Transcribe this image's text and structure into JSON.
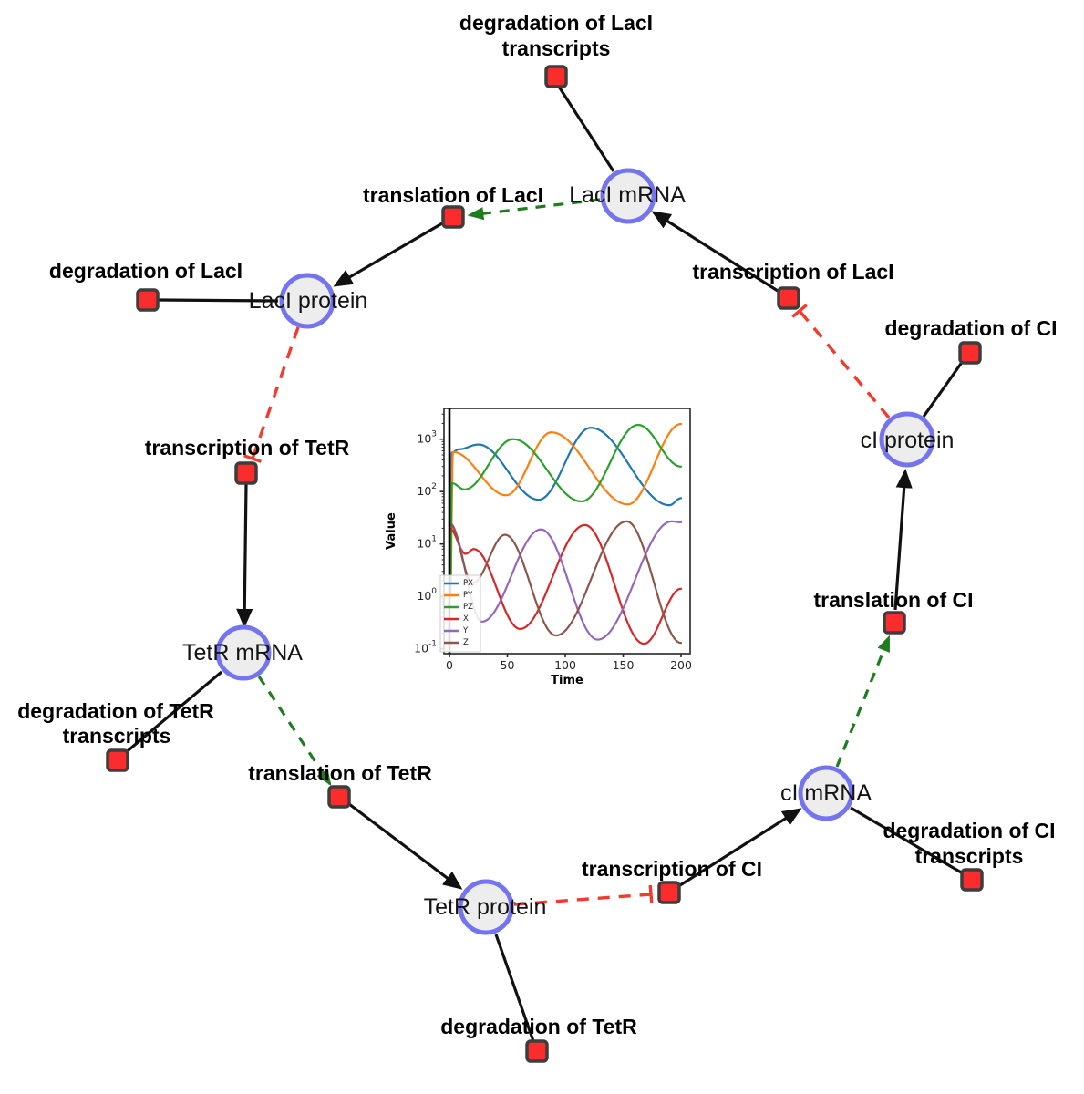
{
  "figure": {
    "background": "#ffffff"
  },
  "network": {
    "style": {
      "species_fill": "#ededed",
      "species_border": "#7473f0",
      "reaction_fill": "#fb2c2c",
      "reaction_border": "#3d3d3d",
      "production_color": "#111111",
      "modifier_color": "#1e7d1e",
      "inhibition_color": "#f23b2e"
    },
    "species": {
      "laci_mrna": {
        "label": "LacI mRNA"
      },
      "laci_protein": {
        "label": "LacI protein"
      },
      "tetr_mrna": {
        "label": "TetR mRNA"
      },
      "tetr_protein": {
        "label": "TetR protein"
      },
      "ci_mrna": {
        "label": "cI mRNA"
      },
      "ci_protein": {
        "label": "cI protein"
      }
    },
    "reactions": {
      "deg_laci_tx": {
        "line1": "degradation of LacI",
        "line2": "transcripts"
      },
      "transl_laci": {
        "line1": "translation of LacI"
      },
      "deg_laci": {
        "line1": "degradation of LacI"
      },
      "transc_tetr": {
        "line1": "transcription of TetR"
      },
      "deg_tetr_tx": {
        "line1": "degradation of TetR",
        "line2": "transcripts"
      },
      "transl_tetr": {
        "line1": "translation of TetR"
      },
      "deg_tetr": {
        "line1": "degradation of TetR"
      },
      "transc_ci": {
        "line1": "transcription of CI"
      },
      "deg_ci_tx": {
        "line1": "degradation of CI",
        "line2": "transcripts"
      },
      "transl_ci": {
        "line1": "translation of CI"
      },
      "deg_ci": {
        "line1": "degradation of CI"
      },
      "transc_laci": {
        "line1": "transcription of LacI"
      }
    },
    "edge_types": {
      "production": "solid black arrow",
      "consumption": "solid black line",
      "modifier": "green dashed arrow",
      "inhibition": "red dashed line with T-bar"
    }
  },
  "chart_data": {
    "type": "line",
    "title": "",
    "xlabel": "Time",
    "ylabel": "Value",
    "yscale": "log",
    "x_ticks": [
      0,
      50,
      100,
      150,
      200
    ],
    "y_tick_exponents": [
      -1,
      0,
      1,
      2,
      3
    ],
    "xlim": [
      -4.7,
      207.9
    ],
    "ylog_lim": [
      -1.09,
      3.59
    ],
    "grid": false,
    "legend_position": "lower left",
    "vline_x": 0,
    "series": [
      {
        "name": "PX",
        "color": "#1f77b4",
        "points": [
          [
            0.8,
            1
          ],
          [
            2,
            550
          ],
          [
            8,
            640
          ],
          [
            25,
            790
          ],
          [
            77,
            70
          ],
          [
            122,
            1650
          ],
          [
            190,
            55
          ],
          [
            200,
            75
          ]
        ]
      },
      {
        "name": "PY",
        "color": "#ff7f0e",
        "points": [
          [
            0.8,
            1
          ],
          [
            3,
            570
          ],
          [
            49,
            85
          ],
          [
            88,
            1350
          ],
          [
            154,
            57
          ],
          [
            200,
            1950
          ]
        ]
      },
      {
        "name": "PZ",
        "color": "#2ca02c",
        "points": [
          [
            0.8,
            1
          ],
          [
            2,
            145
          ],
          [
            13,
            110
          ],
          [
            55,
            1000
          ],
          [
            114,
            65
          ],
          [
            163,
            1870
          ],
          [
            200,
            300
          ]
        ]
      },
      {
        "name": "X",
        "color": "#d62728",
        "points": [
          [
            0,
            20
          ],
          [
            14,
            6.5
          ],
          [
            21,
            8
          ],
          [
            61,
            0.24
          ],
          [
            117,
            23
          ],
          [
            168,
            0.125
          ],
          [
            200,
            1.4
          ]
        ]
      },
      {
        "name": "Y",
        "color": "#9467bd",
        "points": [
          [
            0,
            25
          ],
          [
            28,
            0.33
          ],
          [
            79,
            19
          ],
          [
            128,
            0.15
          ],
          [
            192,
            27
          ],
          [
            200,
            26
          ]
        ]
      },
      {
        "name": "Z",
        "color": "#8c564b",
        "points": [
          [
            0,
            25
          ],
          [
            20,
            1.8
          ],
          [
            48,
            15
          ],
          [
            92,
            0.18
          ],
          [
            153,
            27
          ],
          [
            200,
            0.13
          ]
        ]
      }
    ]
  }
}
